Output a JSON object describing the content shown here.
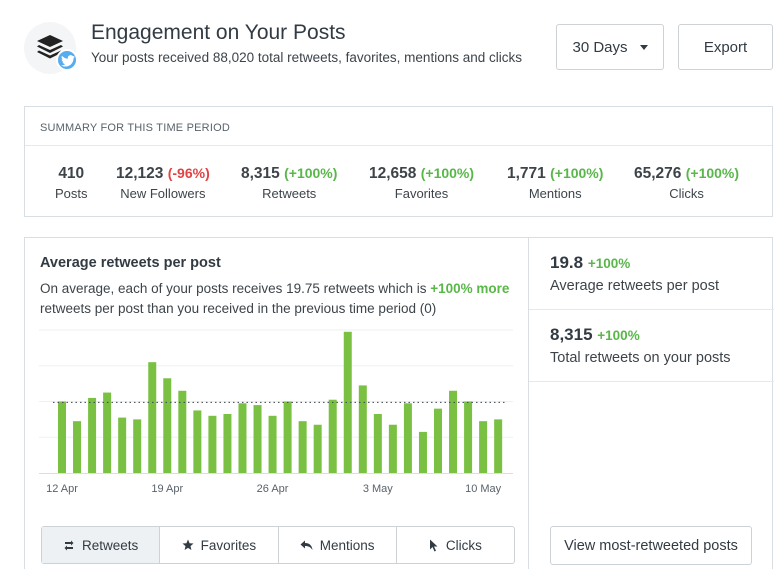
{
  "header": {
    "title": "Engagement on Your Posts",
    "subtitle": "Your posts received 88,020 total retweets, favorites, mentions and clicks",
    "range_label": "30 Days",
    "export_label": "Export"
  },
  "summary": {
    "heading": "SUMMARY FOR THIS TIME PERIOD",
    "stats": [
      {
        "value": "410",
        "delta": "",
        "label": "Posts"
      },
      {
        "value": "12,123",
        "delta": "(-96%)",
        "label": "New Followers"
      },
      {
        "value": "8,315",
        "delta": "(+100%)",
        "label": "Retweets"
      },
      {
        "value": "12,658",
        "delta": "(+100%)",
        "label": "Favorites"
      },
      {
        "value": "1,771",
        "delta": "(+100%)",
        "label": "Mentions"
      },
      {
        "value": "65,276",
        "delta": "(+100%)",
        "label": "Clicks"
      }
    ]
  },
  "chart_panel": {
    "title": "Average retweets per post",
    "desc_before": "On average, each of your posts receives 19.75 retweets which is ",
    "desc_highlight": "+100% more",
    "desc_after": " retweets per post than you received in the previous time period (0)"
  },
  "chart_data": {
    "type": "bar",
    "x_tick_labels": [
      "12 Apr",
      "19 Apr",
      "26 Apr",
      "3 May",
      "10 May"
    ],
    "tick_positions": [
      0,
      7,
      14,
      21,
      28
    ],
    "values": [
      20,
      14.5,
      21,
      22.5,
      15.5,
      15,
      31,
      26.5,
      23,
      17.5,
      16,
      16.5,
      19.5,
      19,
      16,
      20,
      14.5,
      13.5,
      20.5,
      39.5,
      24.5,
      16.5,
      13.5,
      19.5,
      11.5,
      18,
      23,
      20,
      14.5,
      15
    ],
    "average": 19.75,
    "ylim": [
      0,
      40
    ],
    "color": "#7ac143"
  },
  "tabs": [
    {
      "label": "Retweets",
      "icon": "retweet-icon"
    },
    {
      "label": "Favorites",
      "icon": "star-icon"
    },
    {
      "label": "Mentions",
      "icon": "reply-icon"
    },
    {
      "label": "Clicks",
      "icon": "cursor-icon"
    }
  ],
  "side": {
    "metric1": {
      "value": "19.8",
      "delta": "+100%",
      "label": "Average retweets per post"
    },
    "metric2": {
      "value": "8,315",
      "delta": "+100%",
      "label": "Total retweets on your posts"
    },
    "view_button": "View most-retweeted posts"
  },
  "colors": {
    "positive": "#59b74a",
    "negative": "#e04343",
    "twitter": "#55acee",
    "bar": "#7ac143"
  }
}
